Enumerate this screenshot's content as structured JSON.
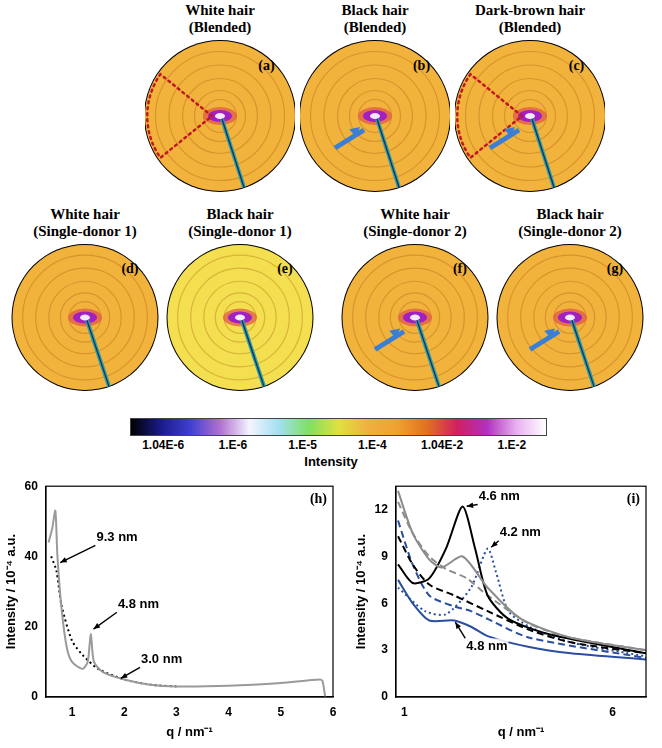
{
  "images": [
    {
      "title": "White hair",
      "subtitle": "(Blended)",
      "letter": "(a)",
      "sector": true,
      "arrow": false,
      "background": "#f2b33d"
    },
    {
      "title": "Black hair",
      "subtitle": "(Blended)",
      "letter": "(b)",
      "sector": false,
      "arrow": true,
      "background": "#f2b33d"
    },
    {
      "title": "Dark-brown hair",
      "subtitle": "(Blended)",
      "letter": "(c)",
      "sector": true,
      "arrow": true,
      "background": "#f2b33d"
    },
    {
      "title": "White hair",
      "subtitle": "(Single-donor 1)",
      "letter": "(d)",
      "sector": false,
      "arrow": false,
      "background": "#f2b33d"
    },
    {
      "title": "Black hair",
      "subtitle": "(Single-donor 1)",
      "letter": "(e)",
      "sector": false,
      "arrow": false,
      "background": "#f3df4f"
    },
    {
      "title": "White hair",
      "subtitle": "(Single-donor 2)",
      "letter": "(f)",
      "sector": false,
      "arrow": true,
      "background": "#f2b33d"
    },
    {
      "title": "Black hair",
      "subtitle": "(Single-donor 2)",
      "letter": "(g)",
      "sector": false,
      "arrow": true,
      "background": "#f2b33d"
    }
  ],
  "colorbar": {
    "title": "Intensity",
    "ticks": [
      "1.04E-6",
      "1.E-6",
      "1.E-5",
      "1.E-4",
      "1.04E-2",
      "1.E-2"
    ],
    "colors": [
      "#000000",
      "#1a1a8c",
      "#3f3fd0",
      "#b070d0",
      "#f4f4ff",
      "#a0e0f0",
      "#80e060",
      "#e0e040",
      "#f0b040",
      "#f0a030",
      "#e07020",
      "#d02060",
      "#b030c0",
      "#e8b0f0",
      "#ffffff"
    ]
  },
  "chart_data": [
    {
      "type": "line",
      "letter": "(h)",
      "x_label": "q / nm⁻¹",
      "y_label": "Intensity / 10⁻⁴ a.u.",
      "xlim": [
        0.5,
        6
      ],
      "xticks": [
        1,
        2,
        3,
        4,
        5,
        6
      ],
      "ylim": [
        0,
        60
      ],
      "yticks": [
        0,
        20,
        40,
        60
      ],
      "grid": false,
      "series": [
        {
          "color": "#9a9a9a",
          "line_style": "solid",
          "x": [
            0.55,
            0.62,
            0.68,
            0.72,
            0.8,
            0.9,
            1.0,
            1.2,
            1.3,
            1.36,
            1.42,
            1.6,
            2.0,
            2.5,
            3.0,
            4.0,
            5.0,
            5.75,
            5.8,
            5.85
          ],
          "values": [
            44,
            48,
            53,
            40,
            25,
            14,
            10,
            8,
            10,
            18,
            10,
            7,
            5,
            3.5,
            3,
            3.2,
            4,
            5,
            4.5,
            0
          ]
        },
        {
          "color": "#000000",
          "line_style": "dotted",
          "x": [
            0.6,
            0.7,
            0.8,
            1.0,
            1.2,
            1.5,
            2.0,
            2.5,
            3.0
          ],
          "values": [
            40,
            36,
            26,
            16,
            12,
            8,
            5,
            3.5,
            3
          ]
        }
      ],
      "annotations": [
        {
          "text": "9.3 nm",
          "at": [
            0.74,
            38
          ]
        },
        {
          "text": "4.8 nm",
          "at": [
            1.38,
            19
          ]
        },
        {
          "text": "3.0 nm",
          "at": [
            1.9,
            5
          ]
        }
      ]
    },
    {
      "type": "line",
      "letter": "(i)",
      "x_label": "q / nm⁻¹",
      "y_label": "Intensity / 10⁻⁴ a.u.",
      "xlim": [
        0.8,
        6.8
      ],
      "xticks": [
        1,
        6
      ],
      "ylim": [
        0,
        13.5
      ],
      "yticks": [
        0,
        3,
        6,
        9,
        12
      ],
      "grid": false,
      "series": [
        {
          "color": "#8c8c8c",
          "line_style": "solid",
          "x": [
            0.85,
            1.2,
            1.6,
            1.9,
            2.4,
            3.0,
            3.8,
            5.0,
            6.8
          ],
          "values": [
            13.2,
            10.5,
            8.8,
            8.3,
            9.0,
            7.0,
            5.0,
            3.8,
            3.0
          ]
        },
        {
          "color": "#000000",
          "line_style": "solid",
          "x": [
            0.85,
            1.2,
            1.6,
            2.0,
            2.4,
            2.7,
            3.0,
            3.5,
            4.5,
            6.8
          ],
          "values": [
            8.5,
            7.3,
            7.6,
            9.5,
            12.2,
            9.5,
            6.5,
            5.0,
            4.0,
            2.8
          ]
        },
        {
          "color": "#8c8c8c",
          "line_style": "dashed",
          "x": [
            0.85,
            1.2,
            1.6,
            2.0,
            2.5,
            3.0,
            4.0,
            5.0,
            6.8
          ],
          "values": [
            12.5,
            10.5,
            9.0,
            8.2,
            7.6,
            6.5,
            4.7,
            3.8,
            3.0
          ]
        },
        {
          "color": "#000000",
          "line_style": "dashed",
          "x": [
            0.85,
            1.2,
            1.6,
            2.2,
            3.0,
            4.0,
            5.0,
            6.8
          ],
          "values": [
            10.3,
            8.5,
            7.2,
            6.5,
            5.5,
            4.3,
            3.5,
            2.8
          ]
        },
        {
          "color": "#2a4fa0",
          "line_style": "dotted",
          "x": [
            0.85,
            1.5,
            2.0,
            2.6,
            3.0,
            3.2,
            3.5,
            4.0,
            5.0,
            6.8
          ],
          "values": [
            7.0,
            5.5,
            5.3,
            7.0,
            9.5,
            8.0,
            5.5,
            4.5,
            3.5,
            2.6
          ]
        },
        {
          "color": "#2a4fa0",
          "line_style": "dashed",
          "x": [
            0.85,
            1.2,
            1.6,
            2.2,
            2.6,
            3.0,
            4.0,
            6.8
          ],
          "values": [
            11.3,
            8.5,
            6.5,
            5.8,
            5.5,
            5.0,
            3.8,
            2.5
          ]
        },
        {
          "color": "#2a4fa0",
          "line_style": "solid",
          "x": [
            0.85,
            1.2,
            1.6,
            2.2,
            2.6,
            3.0,
            4.0,
            5.0,
            6.8
          ],
          "values": [
            7.5,
            6.0,
            4.9,
            4.9,
            4.5,
            3.9,
            3.2,
            2.8,
            2.4
          ]
        }
      ],
      "annotations": [
        {
          "text": "4.6 nm",
          "at": [
            2.45,
            12.2
          ]
        },
        {
          "text": "4.2 nm",
          "at": [
            3.05,
            9.5
          ]
        },
        {
          "text": "4.8 nm",
          "at": [
            2.2,
            4.9
          ]
        }
      ]
    }
  ]
}
